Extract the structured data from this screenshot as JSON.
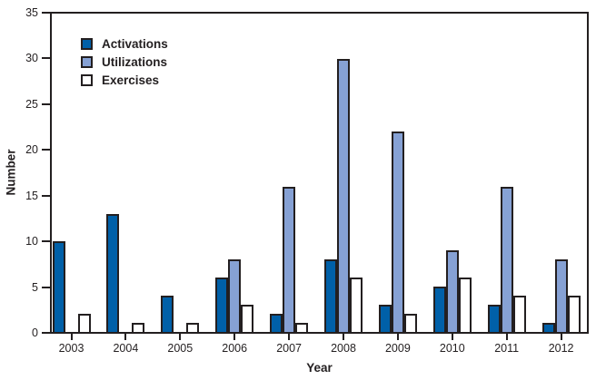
{
  "figure": {
    "background_color": "#FFFFFF",
    "text_color": "#231F20"
  },
  "chart_data": {
    "type": "bar",
    "xlabel": "Year",
    "ylabel": "Number",
    "categories": [
      "2003",
      "2004",
      "2005",
      "2006",
      "2007",
      "2008",
      "2009",
      "2010",
      "2011",
      "2012"
    ],
    "series": [
      {
        "name": "Activations",
        "color": "#0060A8",
        "values": [
          10,
          13,
          4,
          6,
          2,
          8,
          3,
          5,
          3,
          1
        ]
      },
      {
        "name": "Utilizations",
        "color": "#86A1D4",
        "values": [
          0,
          0,
          0,
          8,
          16,
          30,
          22,
          9,
          16,
          8
        ]
      },
      {
        "name": "Exercises",
        "color": "#FFFFFF",
        "values": [
          2,
          1,
          1,
          3,
          1,
          6,
          2,
          6,
          4,
          4
        ]
      }
    ],
    "ylim": [
      0,
      35
    ],
    "ytick_step": 5,
    "ytick_labels": [
      "0",
      "5",
      "10",
      "15",
      "20",
      "25",
      "30",
      "35"
    ],
    "grid": false,
    "legend_position": "top-left",
    "axis_color": "#231F20",
    "bar_border_color": "#231F20"
  }
}
